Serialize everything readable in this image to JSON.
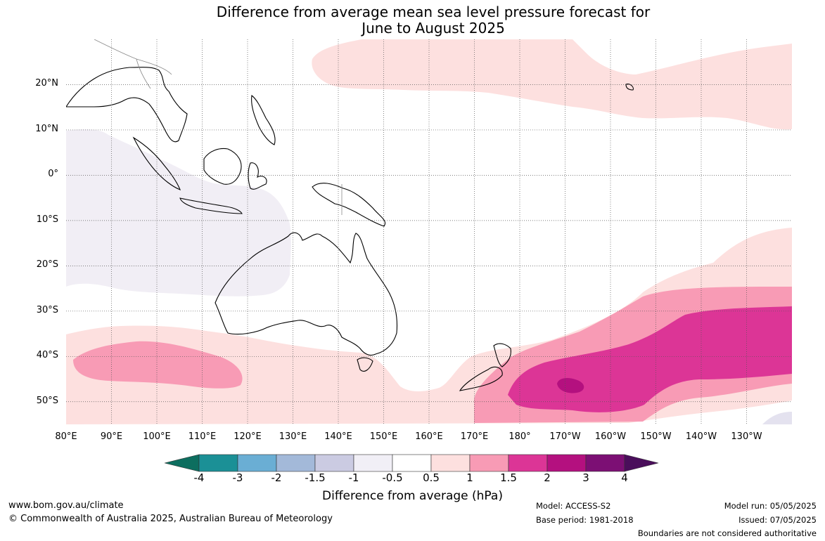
{
  "title": {
    "line1": "Difference from average mean sea level pressure forecast for",
    "line2": "June to August 2025"
  },
  "map": {
    "lat_labels": [
      "20°N",
      "10°N",
      "0°",
      "10°S",
      "20°S",
      "30°S",
      "40°S",
      "50°S"
    ],
    "lon_labels": [
      "80°E",
      "90°E",
      "100°E",
      "110°E",
      "120°E",
      "130°E",
      "140°E",
      "150°E",
      "160°E",
      "170°E",
      "180°",
      "170°W",
      "160°W",
      "150°W",
      "140°W",
      "130°W"
    ],
    "extent": {
      "lon_min": 80,
      "lon_max": 240,
      "lat_min": -55,
      "lat_max": 30
    }
  },
  "colorbar": {
    "ticks": [
      "-4",
      "-3",
      "-2",
      "-1.5",
      "-1",
      "-0.5",
      "0.5",
      "1",
      "1.5",
      "2",
      "3",
      "4"
    ],
    "colors": [
      "#0d6e5f",
      "#1b9096",
      "#6aaed4",
      "#a3b9d9",
      "#cbcbe2",
      "#f1eff6",
      "#ffffff",
      "#fde0df",
      "#f89bb5",
      "#dc3596",
      "#b4107f",
      "#7c0f74",
      "#4a0e5b"
    ],
    "label": "Difference from average (hPa)"
  },
  "footer": {
    "url": "www.bom.gov.au/climate",
    "copyright": "© Commonwealth of Australia 2025, Australian Bureau of Meteorology",
    "model": "Model: ACCESS-S2",
    "base_period": "Base period: 1981-2018",
    "model_run": "Model run: 05/05/2025",
    "issued": "Issued: 07/05/2025",
    "boundaries": "Boundaries are not considered authoritative"
  }
}
